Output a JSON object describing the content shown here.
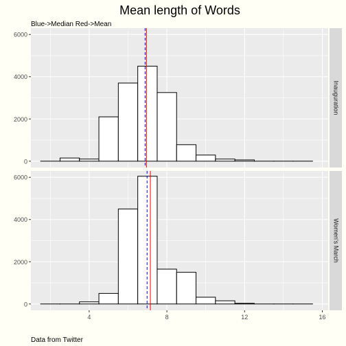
{
  "chart_data": {
    "type": "bar",
    "title": "Mean length of Words",
    "subtitle": "Blue->Median Red->Mean",
    "caption": "Data from Twitter",
    "xlim": [
      1,
      16.3
    ],
    "xticks": [
      4,
      8,
      12,
      16
    ],
    "ylim": [
      -300,
      6300
    ],
    "yticks": [
      0,
      2000,
      4000,
      6000
    ],
    "grid": true,
    "bin_width": 1,
    "colors": {
      "page_bg": "#fffff5",
      "panel_bg": "#ebebeb",
      "grid": "#ffffff",
      "strip_bg": "#d9d9d9",
      "bar_fill": "#ffffff",
      "bar_stroke": "#000000",
      "median_line": "#0000ff",
      "mean_line": "#ff0000"
    },
    "facets": [
      {
        "label": "Inauguration",
        "bins": [
          {
            "x": 2,
            "value": 0
          },
          {
            "x": 3,
            "value": 150
          },
          {
            "x": 4,
            "value": 100
          },
          {
            "x": 5,
            "value": 2100
          },
          {
            "x": 6,
            "value": 3700
          },
          {
            "x": 7,
            "value": 4500
          },
          {
            "x": 8,
            "value": 3250
          },
          {
            "x": 9,
            "value": 780
          },
          {
            "x": 10,
            "value": 290
          },
          {
            "x": 11,
            "value": 100
          },
          {
            "x": 12,
            "value": 60
          },
          {
            "x": 13,
            "value": 0
          },
          {
            "x": 14,
            "value": 0
          },
          {
            "x": 15,
            "value": 0
          }
        ],
        "median": 6.88,
        "mean": 6.95
      },
      {
        "label": "Women's March",
        "bins": [
          {
            "x": 2,
            "value": 0
          },
          {
            "x": 3,
            "value": 0
          },
          {
            "x": 4,
            "value": 100
          },
          {
            "x": 5,
            "value": 500
          },
          {
            "x": 6,
            "value": 4500
          },
          {
            "x": 7,
            "value": 6050
          },
          {
            "x": 8,
            "value": 1650
          },
          {
            "x": 9,
            "value": 1500
          },
          {
            "x": 10,
            "value": 320
          },
          {
            "x": 11,
            "value": 150
          },
          {
            "x": 12,
            "value": 30
          },
          {
            "x": 13,
            "value": 0
          },
          {
            "x": 14,
            "value": 0
          },
          {
            "x": 15,
            "value": 0
          }
        ],
        "median": 6.98,
        "mean": 7.15
      }
    ]
  }
}
